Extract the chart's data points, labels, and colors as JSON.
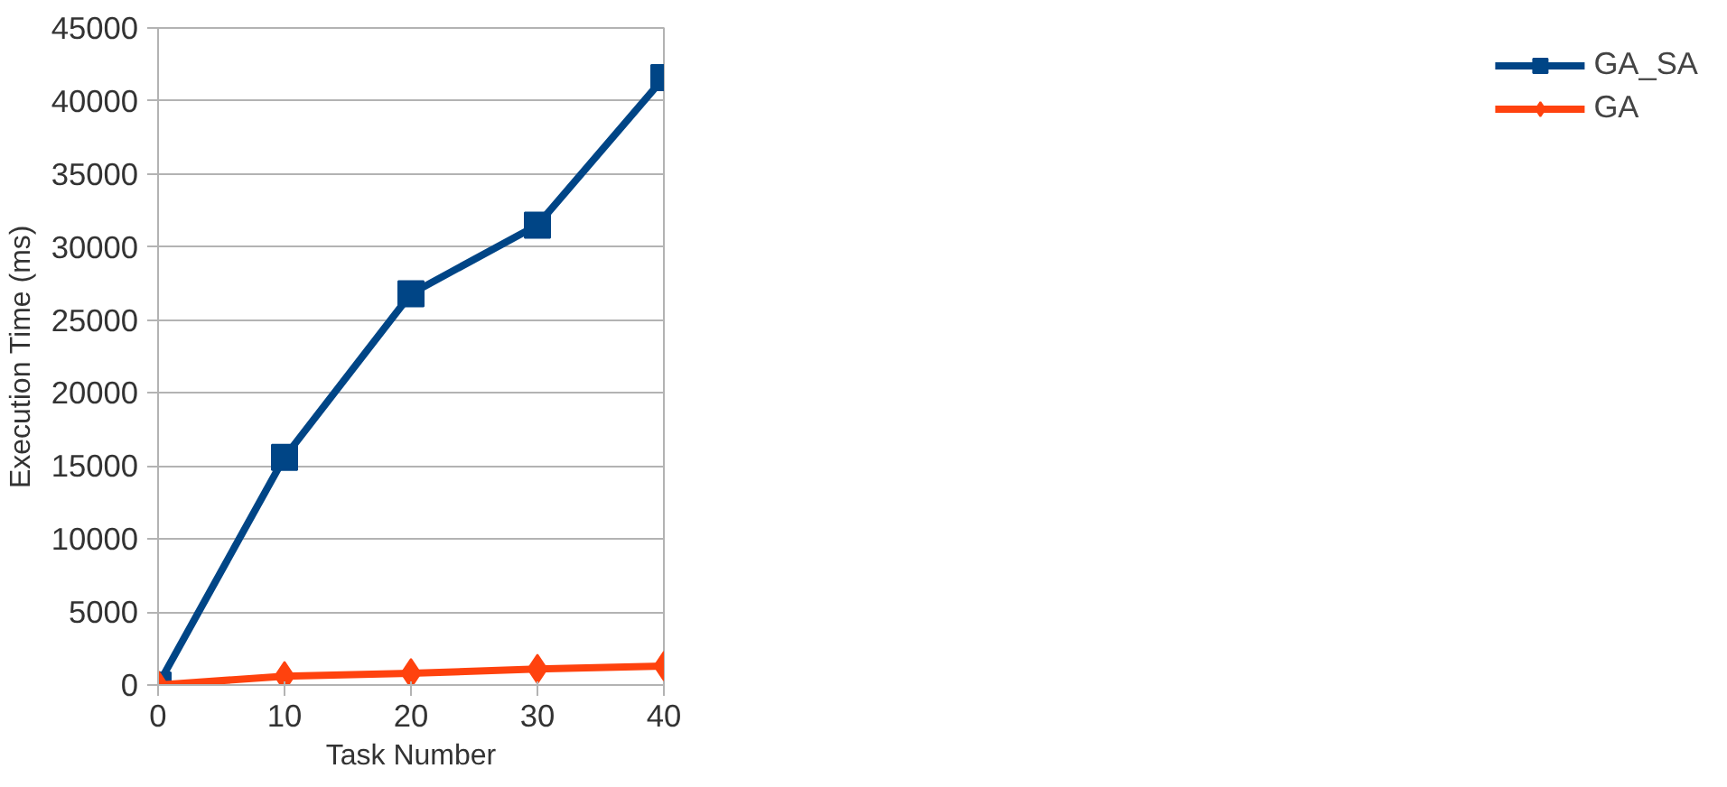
{
  "chart_data": {
    "type": "line",
    "xlabel": "Task Number",
    "ylabel": "Execution Time (ms)",
    "x": [
      0,
      10,
      20,
      30,
      40
    ],
    "xlim": [
      0,
      40
    ],
    "xticks": [
      0,
      10,
      20,
      30,
      40
    ],
    "ylim": [
      0,
      45000
    ],
    "yticks": [
      0,
      5000,
      10000,
      15000,
      20000,
      25000,
      30000,
      35000,
      40000,
      45000
    ],
    "grid": "y",
    "legend": "right",
    "line_style": "solid",
    "series": [
      {
        "name": "GA_SA",
        "color": "#004586",
        "marker": "square",
        "values": [
          0,
          15600,
          26800,
          31500,
          41600
        ]
      },
      {
        "name": "GA",
        "color": "#ff420e",
        "marker": "diamond",
        "values": [
          0,
          600,
          800,
          1100,
          1300
        ]
      }
    ]
  }
}
